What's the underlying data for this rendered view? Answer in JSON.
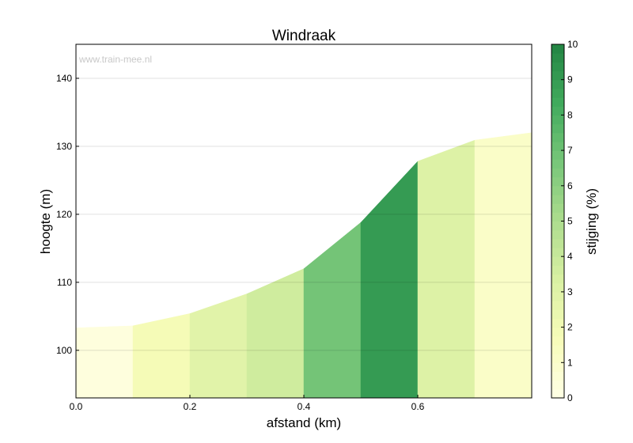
{
  "chart_data": {
    "type": "area",
    "title": "Windraak",
    "watermark": "www.train-mee.nl",
    "xlabel": "afstand (km)",
    "ylabel": "hoogte (m)",
    "xlim": [
      0.0,
      0.8
    ],
    "ylim": [
      93,
      145
    ],
    "x_ticks": [
      0.0,
      0.2,
      0.4,
      0.6
    ],
    "x_tick_labels": [
      "0.0",
      "0.2",
      "0.4",
      "0.6"
    ],
    "y_ticks": [
      100,
      110,
      120,
      130,
      140
    ],
    "y_tick_labels": [
      "100",
      "110",
      "120",
      "130",
      "140"
    ],
    "grid": "horizontal",
    "x": [
      0.0,
      0.1,
      0.2,
      0.3,
      0.4,
      0.5,
      0.6,
      0.7,
      0.8
    ],
    "y": [
      103.3,
      103.6,
      105.4,
      108.3,
      112.0,
      118.8,
      127.8,
      130.9,
      132.0
    ],
    "gradient_pct": [
      0.3,
      1.8,
      2.9,
      3.7,
      6.8,
      9.0,
      3.1,
      1.1
    ],
    "colorbar": {
      "label": "stijging (%)",
      "range": [
        0,
        10
      ],
      "ticks": [
        "0",
        "1",
        "2",
        "3",
        "4",
        "5",
        "6",
        "7",
        "8",
        "9",
        "10"
      ],
      "colors": [
        "#ffffe5",
        "#f7fcb9",
        "#d9f0a3",
        "#addd8e",
        "#78c679",
        "#41ab5d",
        "#238443"
      ]
    }
  }
}
